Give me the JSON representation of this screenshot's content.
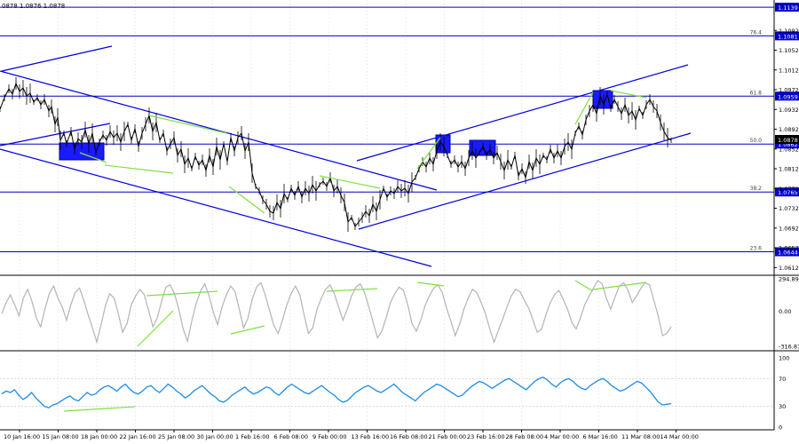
{
  "header": {
    "ohlc_text": "0878 1.0876 1.0878"
  },
  "chart_data": [
    {
      "type": "line",
      "series": [
        {
          "x": [
            0,
            3,
            6,
            9,
            12,
            15,
            18,
            21,
            24,
            27,
            30,
            33,
            36,
            39,
            42,
            45,
            48,
            51,
            54,
            57,
            60,
            63,
            66,
            69,
            72,
            75,
            78,
            81,
            84,
            87,
            90,
            93,
            96,
            99,
            102,
            105,
            108,
            111,
            114,
            117,
            120,
            123,
            126,
            129,
            132,
            135,
            138,
            141,
            144,
            147,
            150,
            153,
            156,
            159,
            162,
            165,
            168,
            171,
            174,
            177,
            180,
            183,
            186,
            189,
            192,
            195,
            198,
            201,
            204,
            207,
            210
          ],
          "y": [
            1.0935,
            1.0958,
            1.0975,
            1.0962,
            1.0948,
            1.094,
            1.0905,
            1.0855,
            1.0865,
            1.0878,
            1.087,
            1.0882,
            1.0892,
            1.0876,
            1.0868,
            1.0888,
            1.0903,
            1.0895,
            1.0915,
            1.0897,
            1.0878,
            1.0865,
            1.0858,
            1.0848,
            1.084,
            1.0852,
            1.0866,
            1.0852,
            1.0876,
            1.0888,
            1.088,
            1.0872,
            1.0878,
            1.0858,
            1.0808,
            1.078,
            1.0752,
            1.0762,
            1.0788,
            1.0792,
            1.0798,
            1.0802,
            1.0808,
            1.0802,
            1.0813,
            1.0822,
            1.0795,
            1.0755,
            1.071,
            1.0722,
            1.0752,
            1.0772,
            1.0775,
            1.0782,
            1.0785,
            1.0796,
            1.0832,
            1.0856,
            1.0842,
            1.0848,
            1.085,
            1.0838,
            1.0855,
            1.0862,
            1.0848,
            1.0835,
            1.083,
            1.0816,
            1.0812,
            1.0826,
            1.0842
          ],
          "y2": [
            1.0858,
            1.0862,
            1.0905,
            1.0932,
            1.0946,
            1.0938,
            1.092,
            1.095,
            1.0962,
            1.0955,
            1.094,
            1.0928,
            1.0945,
            1.0952,
            1.094,
            1.0918,
            1.0925,
            1.0936,
            1.0945,
            1.0958,
            1.095,
            1.0928,
            1.0895,
            1.0878,
            1.0876,
            1.0878,
            1.0878,
            1.0878,
            1.0878,
            1.0878,
            1.0878,
            1.0878,
            1.0878,
            1.0878,
            1.0878,
            1.0878,
            1.0878,
            1.0878,
            1.0878,
            1.0878,
            1.0878,
            1.0878,
            1.0878,
            1.0878,
            1.0878,
            1.0878,
            1.0878,
            1.0878,
            1.0878,
            1.0878,
            1.0878,
            1.0878,
            1.0878,
            1.0878,
            1.0878,
            1.0878,
            1.0878,
            1.0878,
            1.0878,
            1.0878,
            1.0878,
            1.0878,
            1.0878,
            1.0878,
            1.0878,
            1.0878,
            1.0878,
            1.0878,
            1.0878,
            1.0878,
            1.0878
          ]
        }
      ],
      "ylim": [
        1.06,
        1.115
      ],
      "yticks": [
        "1.1092",
        "1.1052",
        "1.1012",
        "1.0972",
        "1.0932",
        "1.0892",
        "1.0852",
        "1.0812",
        "1.0772",
        "1.0732",
        "1.0692",
        "1.0652",
        "1.0612"
      ],
      "ytick_values": [
        1.1092,
        1.1052,
        1.1012,
        1.0972,
        1.0932,
        1.0892,
        1.0852,
        1.0812,
        1.0772,
        1.0732,
        1.0692,
        1.0652,
        1.0612
      ],
      "fib_levels": [
        {
          "label": "76.4",
          "price": 1.1081,
          "tag": "1.1081"
        },
        {
          "label": "61.8",
          "price": 1.0959,
          "tag": "1.0959"
        },
        {
          "label": "50.0",
          "price": 1.0862,
          "tag": "1.0862"
        },
        {
          "label": "38.2",
          "price": 1.0765,
          "tag": "1.0765"
        },
        {
          "label": "23.6",
          "price": 1.0644,
          "tag": "1.0644"
        }
      ],
      "top_level": {
        "price": 1.1139,
        "tag": "1.1139"
      },
      "current_price": {
        "price": 1.0878,
        "tag": "1.0878"
      },
      "xtick_labels": [
        "10 Jan 16:00",
        "15 Jan 08:00",
        "18 Jan 00:00",
        "22 Jan 16:00",
        "25 Jan 08:00",
        "30 Jan 00:00",
        "1 Feb 16:00",
        "6 Feb 08:00",
        "9 Feb 00:00",
        "13 Feb 16:00",
        "16 Feb 08:00",
        "21 Feb 00:00",
        "23 Feb 16:00",
        "28 Feb 08:00",
        "4 Mar 00:00",
        "6 Mar 16:00",
        "11 Mar 08:00",
        "14 Mar 00:00"
      ]
    },
    {
      "type": "line",
      "ylim": [
        -316.878,
        294.899
      ],
      "yticks": [
        "294.899",
        "0.00",
        "-316.878"
      ],
      "ytick_values": [
        294.899,
        0,
        -316.878
      ],
      "series": [
        {
          "values": [
            -20,
            80,
            150,
            60,
            -40,
            120,
            200,
            90,
            -60,
            -140,
            20,
            160,
            230,
            120,
            40,
            -80,
            60,
            170,
            210,
            100,
            -30,
            -150,
            -280,
            -120,
            50,
            160,
            120,
            -20,
            -190,
            -110,
            60,
            140,
            200,
            150,
            10,
            -140,
            -60,
            90,
            220,
            240,
            160,
            20,
            -160,
            -270,
            -90,
            70,
            180,
            250,
            140,
            -10,
            -120,
            40,
            150,
            230,
            180,
            20,
            -150,
            -60,
            110,
            220,
            260,
            150,
            10,
            -130,
            -200,
            -80,
            60,
            160,
            230,
            150,
            -30,
            -200,
            -150,
            20,
            120,
            200,
            240,
            160,
            40,
            -80,
            20,
            140,
            220,
            250,
            170,
            40,
            -100,
            -240,
            -180,
            -60,
            80,
            160,
            220,
            190,
            60,
            -110,
            -180,
            -80,
            50,
            140,
            210,
            240,
            170,
            30,
            -90,
            -220,
            -120,
            20,
            120,
            200,
            170,
            80,
            -20,
            -160,
            -280,
            -170,
            -70,
            40,
            140,
            200,
            180,
            100,
            30,
            -80,
            -190,
            -160,
            -30,
            80,
            150,
            190,
            110,
            20,
            -100,
            -160,
            -60,
            60,
            140,
            210,
            280,
            250,
            120,
            20,
            130,
            230,
            260,
            190,
            80,
            140,
            210,
            260,
            240,
            100,
            -40,
            -220,
            -200,
            -140
          ]
        }
      ]
    },
    {
      "type": "line",
      "ylim": [
        0,
        100
      ],
      "yticks": [
        "100",
        "70",
        "30",
        "0"
      ],
      "ytick_values": [
        100,
        70,
        30,
        0
      ],
      "series": [
        {
          "values": [
            48,
            52,
            50,
            54,
            46,
            40,
            44,
            50,
            42,
            36,
            30,
            28,
            32,
            34,
            38,
            42,
            45,
            40,
            38,
            44,
            50,
            46,
            48,
            54,
            58,
            60,
            56,
            52,
            58,
            62,
            55,
            50,
            48,
            52,
            58,
            60,
            54,
            50,
            56,
            62,
            58,
            52,
            48,
            42,
            46,
            52,
            56,
            60,
            54,
            48,
            44,
            38,
            36,
            40,
            46,
            50,
            54,
            58,
            52,
            48,
            50,
            54,
            58,
            56,
            50,
            46,
            52,
            58,
            62,
            58,
            54,
            50,
            48,
            52,
            56,
            60,
            55,
            50,
            46,
            40,
            36,
            38,
            44,
            50,
            54,
            58,
            60,
            56,
            52,
            50,
            54,
            58,
            62,
            56,
            50,
            46,
            42,
            38,
            44,
            50,
            54,
            58,
            62,
            60,
            56,
            52,
            48,
            44,
            46,
            52,
            58,
            62,
            66,
            64,
            60,
            56,
            60,
            64,
            68,
            70,
            66,
            62,
            58,
            54,
            60,
            66,
            70,
            72,
            68,
            62,
            58,
            64,
            68,
            70,
            66,
            60,
            56,
            54,
            60,
            64,
            68,
            70,
            66,
            60,
            56,
            52,
            54,
            58,
            62,
            66,
            64,
            58,
            52,
            44,
            36,
            32,
            33,
            34
          ]
        }
      ]
    }
  ],
  "colors": {
    "channel": "#0000e0",
    "level": "#0000cc",
    "price": "#000000",
    "cci": "#b4b4b4",
    "rsi": "#1e8ce6",
    "divergence": "#80e040",
    "box": "#1a1aff"
  }
}
